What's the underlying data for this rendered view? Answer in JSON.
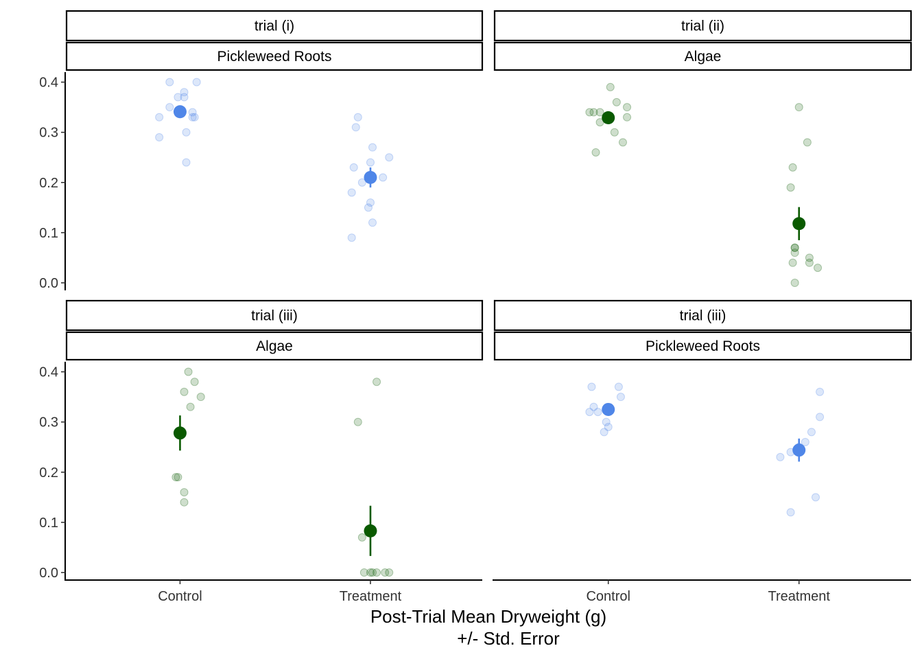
{
  "chart_data": {
    "type": "scatter",
    "xlabel_line1": "Post-Trial Mean Dryweight (g)",
    "xlabel_line2": "+/- Std. Error",
    "ylabel": "",
    "categories": [
      "Control",
      "Treatment"
    ],
    "ylim": [
      -0.015,
      0.42
    ],
    "yticks": [
      "0.0",
      "0.1",
      "0.2",
      "0.3",
      "0.4"
    ],
    "colors": {
      "roots": "#4f86e8",
      "algae": "#0a5a00"
    },
    "panels": [
      {
        "trial": "trial (i)",
        "label": "Pickleweed Roots",
        "color_key": "roots",
        "points": {
          "Control": [
            {
              "dx": -0.05,
              "y": 0.4
            },
            {
              "dx": 0.08,
              "y": 0.4
            },
            {
              "dx": -0.01,
              "y": 0.37
            },
            {
              "dx": 0.02,
              "y": 0.38
            },
            {
              "dx": 0.02,
              "y": 0.37
            },
            {
              "dx": -0.05,
              "y": 0.35
            },
            {
              "dx": 0.06,
              "y": 0.34
            },
            {
              "dx": -0.1,
              "y": 0.33
            },
            {
              "dx": 0.06,
              "y": 0.33
            },
            {
              "dx": 0.07,
              "y": 0.33
            },
            {
              "dx": 0.03,
              "y": 0.3
            },
            {
              "dx": -0.1,
              "y": 0.29
            },
            {
              "dx": 0.03,
              "y": 0.24
            }
          ],
          "Treatment": [
            {
              "dx": -0.06,
              "y": 0.33
            },
            {
              "dx": -0.07,
              "y": 0.31
            },
            {
              "dx": 0.01,
              "y": 0.27
            },
            {
              "dx": 0.09,
              "y": 0.25
            },
            {
              "dx": -0.08,
              "y": 0.23
            },
            {
              "dx": 0.0,
              "y": 0.24
            },
            {
              "dx": -0.04,
              "y": 0.2
            },
            {
              "dx": 0.06,
              "y": 0.21
            },
            {
              "dx": -0.09,
              "y": 0.18
            },
            {
              "dx": 0.0,
              "y": 0.16
            },
            {
              "dx": -0.01,
              "y": 0.15
            },
            {
              "dx": 0.01,
              "y": 0.12
            },
            {
              "dx": -0.09,
              "y": 0.09
            }
          ]
        },
        "summary": {
          "Control": {
            "mean": 0.341,
            "se": 0.011
          },
          "Treatment": {
            "mean": 0.21,
            "se": 0.02
          }
        }
      },
      {
        "trial": "trial (ii)",
        "label": "Algae",
        "color_key": "algae",
        "points": {
          "Control": [
            {
              "dx": 0.01,
              "y": 0.39
            },
            {
              "dx": 0.04,
              "y": 0.36
            },
            {
              "dx": 0.09,
              "y": 0.35
            },
            {
              "dx": -0.09,
              "y": 0.34
            },
            {
              "dx": -0.07,
              "y": 0.34
            },
            {
              "dx": -0.04,
              "y": 0.34
            },
            {
              "dx": 0.09,
              "y": 0.33
            },
            {
              "dx": -0.04,
              "y": 0.32
            },
            {
              "dx": 0.03,
              "y": 0.3
            },
            {
              "dx": 0.07,
              "y": 0.28
            },
            {
              "dx": -0.06,
              "y": 0.26
            }
          ],
          "Treatment": [
            {
              "dx": 0.0,
              "y": 0.35
            },
            {
              "dx": 0.04,
              "y": 0.28
            },
            {
              "dx": -0.03,
              "y": 0.23
            },
            {
              "dx": -0.04,
              "y": 0.19
            },
            {
              "dx": -0.02,
              "y": 0.07
            },
            {
              "dx": -0.02,
              "y": 0.06
            },
            {
              "dx": -0.02,
              "y": 0.07
            },
            {
              "dx": 0.05,
              "y": 0.05
            },
            {
              "dx": 0.05,
              "y": 0.04
            },
            {
              "dx": -0.03,
              "y": 0.04
            },
            {
              "dx": 0.09,
              "y": 0.03
            },
            {
              "dx": -0.02,
              "y": 0.0
            }
          ]
        },
        "summary": {
          "Control": {
            "mean": 0.329,
            "se": 0.01
          },
          "Treatment": {
            "mean": 0.118,
            "se": 0.033
          }
        }
      },
      {
        "trial": "trial (iii)",
        "label": "Algae",
        "color_key": "algae",
        "points": {
          "Control": [
            {
              "dx": 0.04,
              "y": 0.4
            },
            {
              "dx": 0.07,
              "y": 0.38
            },
            {
              "dx": 0.02,
              "y": 0.36
            },
            {
              "dx": 0.1,
              "y": 0.35
            },
            {
              "dx": 0.05,
              "y": 0.33
            },
            {
              "dx": -0.02,
              "y": 0.19
            },
            {
              "dx": -0.01,
              "y": 0.19
            },
            {
              "dx": 0.02,
              "y": 0.16
            },
            {
              "dx": 0.02,
              "y": 0.14
            }
          ],
          "Treatment": [
            {
              "dx": 0.03,
              "y": 0.38
            },
            {
              "dx": -0.06,
              "y": 0.3
            },
            {
              "dx": -0.04,
              "y": 0.07
            },
            {
              "dx": -0.03,
              "y": 0.0
            },
            {
              "dx": 0.0,
              "y": 0.0
            },
            {
              "dx": 0.01,
              "y": 0.0
            },
            {
              "dx": 0.03,
              "y": 0.0
            },
            {
              "dx": 0.07,
              "y": 0.0
            },
            {
              "dx": 0.09,
              "y": 0.0
            }
          ]
        },
        "summary": {
          "Control": {
            "mean": 0.278,
            "se": 0.035
          },
          "Treatment": {
            "mean": 0.083,
            "se": 0.05
          }
        }
      },
      {
        "trial": "trial (iii)",
        "label": "Pickleweed Roots",
        "color_key": "roots",
        "points": {
          "Control": [
            {
              "dx": -0.08,
              "y": 0.37
            },
            {
              "dx": 0.05,
              "y": 0.37
            },
            {
              "dx": 0.06,
              "y": 0.35
            },
            {
              "dx": -0.07,
              "y": 0.33
            },
            {
              "dx": -0.09,
              "y": 0.32
            },
            {
              "dx": -0.05,
              "y": 0.32
            },
            {
              "dx": -0.01,
              "y": 0.3
            },
            {
              "dx": 0.0,
              "y": 0.29
            },
            {
              "dx": -0.02,
              "y": 0.28
            }
          ],
          "Treatment": [
            {
              "dx": 0.1,
              "y": 0.36
            },
            {
              "dx": 0.1,
              "y": 0.31
            },
            {
              "dx": 0.06,
              "y": 0.28
            },
            {
              "dx": 0.03,
              "y": 0.26
            },
            {
              "dx": -0.04,
              "y": 0.24
            },
            {
              "dx": 0.0,
              "y": 0.25
            },
            {
              "dx": -0.09,
              "y": 0.23
            },
            {
              "dx": 0.08,
              "y": 0.15
            },
            {
              "dx": -0.04,
              "y": 0.12
            }
          ]
        },
        "summary": {
          "Control": {
            "mean": 0.325,
            "se": 0.01
          },
          "Treatment": {
            "mean": 0.244,
            "se": 0.023
          }
        }
      }
    ]
  }
}
